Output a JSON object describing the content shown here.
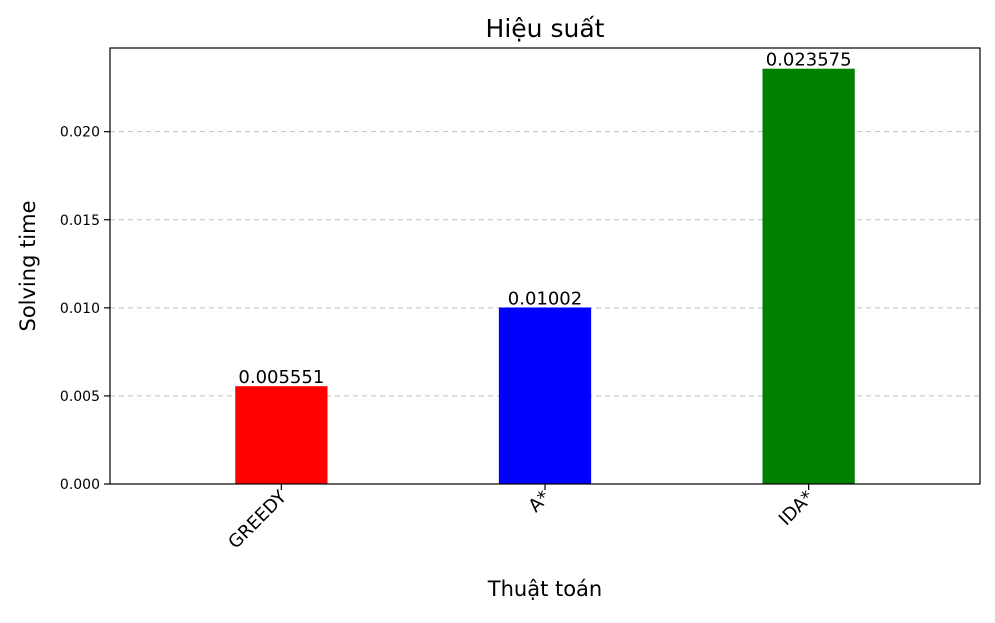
{
  "chart_data": {
    "type": "bar",
    "title": "Hiệu suất",
    "xlabel": "Thuật toán",
    "ylabel": "Solving time",
    "categories": [
      "GREEDY",
      "A*",
      "IDA*"
    ],
    "values": [
      0.005551,
      0.01002,
      0.023575
    ],
    "value_labels": [
      "0.005551",
      "0.01002",
      "0.023575"
    ],
    "colors": [
      "#ff0000",
      "#0000ff",
      "#008000"
    ],
    "ylim": [
      0,
      0.02475
    ],
    "yticks": [
      0,
      0.005,
      0.01,
      0.015,
      0.02
    ],
    "ytick_labels": [
      "0.000",
      "0.005",
      "0.010",
      "0.015",
      "0.020"
    ],
    "grid": "y-dashed",
    "x_tick_rotation": "45"
  }
}
